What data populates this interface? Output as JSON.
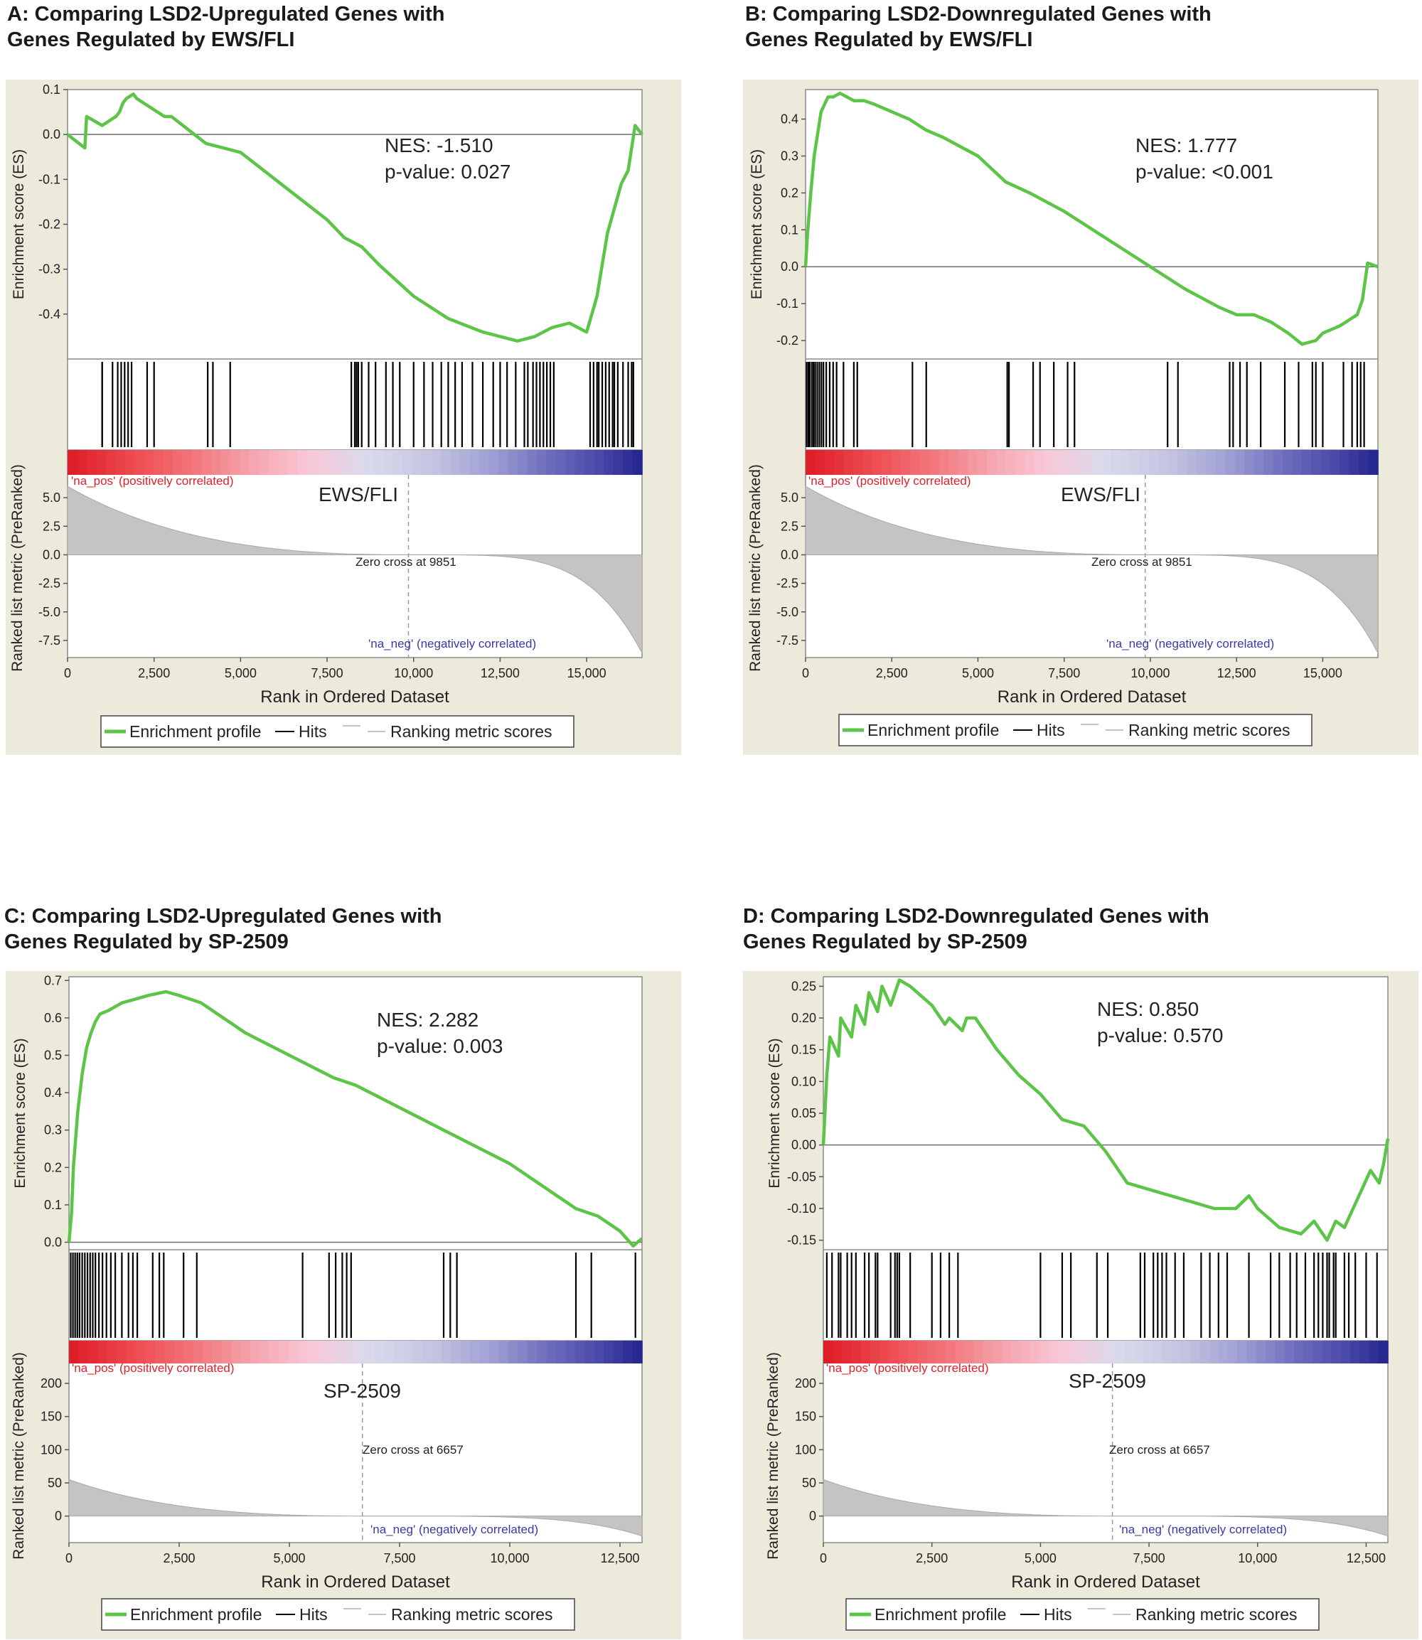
{
  "chart_data": [
    {
      "type": "line",
      "panel_title": "A: Comparing LSD2-Upregulated Genes with\nGenes Regulated by EWS/FLI",
      "nes_label": "NES: -1.510",
      "pvalue_label": "p-value: 0.027",
      "dataset_label": "EWS/FLI",
      "zero_cross_label": "Zero cross at 9851",
      "zero_cross": 9851,
      "pos_label": "'na_pos' (positively correlated)",
      "neg_label": "'na_neg' (negatively correlated)",
      "es_ylabel": "Enrichment score (ES)",
      "metric_ylabel": "Ranked list metric (PreRanked)",
      "xlabel": "Rank in Ordered Dataset",
      "xlim": [
        0,
        16600
      ],
      "x_ticks": [
        0,
        2500,
        5000,
        7500,
        10000,
        12500,
        15000
      ],
      "x_tick_labels": [
        "0",
        "2,500",
        "5,000",
        "7,500",
        "10,000",
        "12,500",
        "15,000"
      ],
      "es_ylim": [
        -0.5,
        0.1
      ],
      "es_ticks": [
        0.1,
        0.0,
        -0.1,
        -0.2,
        -0.3,
        -0.4
      ],
      "es_tick_labels": [
        "0.1",
        "0.0",
        "-0.1",
        "-0.2",
        "-0.3",
        "-0.4"
      ],
      "metric_ylim": [
        -9.0,
        7.0
      ],
      "metric_ticks": [
        5.0,
        2.5,
        0.0,
        -2.5,
        -5.0,
        -7.5
      ],
      "metric_tick_labels": [
        "5.0",
        "2.5",
        "0.0",
        "-2.5",
        "-5.0",
        "-7.5"
      ],
      "metric_max": 6.0,
      "metric_min": -8.6,
      "enrichment_profile": {
        "x": [
          0,
          500,
          550,
          1000,
          1400,
          1500,
          1600,
          1700,
          1900,
          2000,
          2800,
          3000,
          4000,
          4500,
          5000,
          6000,
          7500,
          8000,
          8500,
          9000,
          10000,
          11000,
          12000,
          13000,
          13500,
          14000,
          14500,
          15000,
          15300,
          15600,
          16000,
          16200,
          16400,
          16600
        ],
        "y": [
          0.0,
          -0.03,
          0.04,
          0.02,
          0.04,
          0.05,
          0.07,
          0.08,
          0.09,
          0.08,
          0.04,
          0.04,
          -0.02,
          -0.03,
          -0.04,
          -0.1,
          -0.19,
          -0.23,
          -0.25,
          -0.29,
          -0.36,
          -0.41,
          -0.44,
          -0.46,
          -0.45,
          -0.43,
          -0.42,
          -0.44,
          -0.36,
          -0.22,
          -0.11,
          -0.08,
          0.02,
          0.0
        ]
      },
      "hits": [
        1000,
        1000,
        1300,
        1450,
        1550,
        1650,
        1750,
        1850,
        2300,
        2500,
        4050,
        4200,
        4700,
        8200,
        8300,
        8350,
        8400,
        8500,
        8700,
        8900,
        9200,
        9400,
        9600,
        10000,
        10300,
        10550,
        10800,
        11000,
        11200,
        11400,
        11700,
        12000,
        12300,
        12500,
        12700,
        12950,
        13200,
        13300,
        13450,
        13550,
        13650,
        13750,
        13850,
        13950,
        14050,
        15100,
        15200,
        15300,
        15350,
        15450,
        15550,
        15650,
        15750,
        15800,
        15900,
        16050,
        16200,
        16300,
        16350
      ],
      "legend": [
        "Enrichment profile",
        "Hits",
        "Ranking metric scores"
      ]
    },
    {
      "type": "line",
      "panel_title": "B: Comparing LSD2-Downregulated Genes with\nGenes Regulated by EWS/FLI",
      "nes_label": "NES: 1.777",
      "pvalue_label": "p-value: <0.001",
      "dataset_label": "EWS/FLI",
      "zero_cross_label": "Zero cross at 9851",
      "zero_cross": 9851,
      "pos_label": "'na_pos' (positively correlated)",
      "neg_label": "'na_neg' (negatively correlated)",
      "es_ylabel": "Enrichment score (ES)",
      "metric_ylabel": "Ranked list metric (PreRanked)",
      "xlabel": "Rank in Ordered Dataset",
      "xlim": [
        0,
        16600
      ],
      "x_ticks": [
        0,
        2500,
        5000,
        7500,
        10000,
        12500,
        15000
      ],
      "x_tick_labels": [
        "0",
        "2,500",
        "5,000",
        "7,500",
        "10,000",
        "12,500",
        "15,000"
      ],
      "es_ylim": [
        -0.25,
        0.48
      ],
      "es_ticks": [
        0.4,
        0.3,
        0.2,
        0.1,
        0.0,
        -0.1,
        -0.2
      ],
      "es_tick_labels": [
        "0.4",
        "0.3",
        "0.2",
        "0.1",
        "0.0",
        "-0.1",
        "-0.2"
      ],
      "metric_ylim": [
        -9.0,
        7.0
      ],
      "metric_ticks": [
        5.0,
        2.5,
        0.0,
        -2.5,
        -5.0,
        -7.5
      ],
      "metric_tick_labels": [
        "5.0",
        "2.5",
        "0.0",
        "-2.5",
        "-5.0",
        "-7.5"
      ],
      "metric_max": 6.0,
      "metric_min": -8.6,
      "enrichment_profile": {
        "x": [
          0,
          50,
          150,
          250,
          350,
          450,
          550,
          650,
          800,
          1000,
          1200,
          1400,
          1700,
          2000,
          2500,
          3000,
          3500,
          4000,
          5000,
          5800,
          6500,
          7500,
          8500,
          9500,
          10000,
          11000,
          12000,
          12500,
          13000,
          13500,
          14000,
          14400,
          14800,
          15000,
          15500,
          16000,
          16150,
          16300,
          16600
        ],
        "y": [
          0.0,
          0.08,
          0.2,
          0.3,
          0.36,
          0.42,
          0.44,
          0.46,
          0.46,
          0.47,
          0.46,
          0.45,
          0.45,
          0.44,
          0.42,
          0.4,
          0.37,
          0.35,
          0.3,
          0.23,
          0.2,
          0.15,
          0.09,
          0.03,
          0.0,
          -0.06,
          -0.11,
          -0.13,
          -0.13,
          -0.15,
          -0.18,
          -0.21,
          -0.2,
          -0.18,
          -0.16,
          -0.13,
          -0.09,
          0.01,
          0.0
        ]
      },
      "hits": [
        30,
        80,
        120,
        180,
        230,
        280,
        340,
        400,
        460,
        520,
        600,
        700,
        800,
        900,
        1100,
        1400,
        1500,
        3100,
        3500,
        5850,
        5900,
        6600,
        6800,
        7200,
        7600,
        7800,
        10500,
        10800,
        12300,
        12400,
        12600,
        12800,
        13200,
        13900,
        14300,
        14700,
        14800,
        15000,
        15600,
        15850,
        16000,
        16100,
        16200
      ],
      "legend": [
        "Enrichment profile",
        "Hits",
        "Ranking metric scores"
      ]
    },
    {
      "type": "line",
      "panel_title": "C: Comparing LSD2-Upregulated Genes with\nGenes Regulated by SP-2509",
      "nes_label": "NES: 2.282",
      "pvalue_label": "p-value: 0.003",
      "dataset_label": "SP-2509",
      "zero_cross_label": "Zero cross at 6657",
      "zero_cross": 6657,
      "pos_label": "'na_pos' (positively correlated)",
      "neg_label": "'na_neg' (negatively correlated)",
      "es_ylabel": "Enrichment score (ES)",
      "metric_ylabel": "Ranked list metric (PreRanked)",
      "xlabel": "Rank in Ordered Dataset",
      "xlim": [
        0,
        13000
      ],
      "x_ticks": [
        0,
        2500,
        5000,
        7500,
        10000,
        12500
      ],
      "x_tick_labels": [
        "0",
        "2,500",
        "5,000",
        "7,500",
        "10,000",
        "12,500"
      ],
      "es_ylim": [
        -0.02,
        0.71
      ],
      "es_ticks": [
        0.7,
        0.6,
        0.5,
        0.4,
        0.3,
        0.2,
        0.1,
        0.0
      ],
      "es_tick_labels": [
        "0.7",
        "0.6",
        "0.5",
        "0.4",
        "0.3",
        "0.2",
        "0.1",
        "0.0"
      ],
      "metric_ylim": [
        -40,
        230
      ],
      "metric_ticks": [
        200,
        150,
        100,
        50,
        0
      ],
      "metric_tick_labels": [
        "200",
        "150",
        "100",
        "50",
        "0"
      ],
      "metric_max": 55,
      "metric_min": -30,
      "enrichment_profile": {
        "x": [
          0,
          60,
          100,
          200,
          300,
          400,
          500,
          600,
          700,
          900,
          1200,
          1500,
          1800,
          2200,
          2500,
          3000,
          3500,
          4000,
          4500,
          5000,
          5500,
          6000,
          6500,
          7000,
          7500,
          8000,
          8500,
          9000,
          9500,
          10000,
          10500,
          11000,
          11500,
          12000,
          12500,
          12800,
          13000
        ],
        "y": [
          0.0,
          0.08,
          0.2,
          0.35,
          0.45,
          0.52,
          0.56,
          0.59,
          0.61,
          0.62,
          0.64,
          0.65,
          0.66,
          0.67,
          0.66,
          0.64,
          0.6,
          0.56,
          0.53,
          0.5,
          0.47,
          0.44,
          0.42,
          0.39,
          0.36,
          0.33,
          0.3,
          0.27,
          0.24,
          0.21,
          0.17,
          0.13,
          0.09,
          0.07,
          0.03,
          -0.01,
          0.01
        ]
      },
      "hits": [
        40,
        90,
        140,
        190,
        240,
        300,
        360,
        420,
        480,
        540,
        600,
        680,
        760,
        850,
        950,
        1050,
        1200,
        1350,
        1450,
        1550,
        1900,
        2050,
        2150,
        2600,
        2900,
        5300,
        5900,
        6050,
        6200,
        6300,
        6400,
        8500,
        8650,
        8800,
        11500,
        11850,
        12850
      ],
      "legend": [
        "Enrichment profile",
        "Hits",
        "Ranking metric scores"
      ]
    },
    {
      "type": "line",
      "panel_title": "D: Comparing LSD2-Downregulated Genes with\nGenes Regulated by SP-2509",
      "nes_label": "NES: 0.850",
      "pvalue_label": "p-value: 0.570",
      "dataset_label": "SP-2509",
      "zero_cross_label": "Zero cross at 6657",
      "zero_cross": 6657,
      "pos_label": "'na_pos' (positively correlated)",
      "neg_label": "'na_neg' (negatively correlated)",
      "es_ylabel": "Enrichment score (ES)",
      "metric_ylabel": "Ranked list metric (PreRanked)",
      "xlabel": "Rank in Ordered Dataset",
      "xlim": [
        0,
        13000
      ],
      "x_ticks": [
        0,
        2500,
        5000,
        7500,
        10000,
        12500
      ],
      "x_tick_labels": [
        "0",
        "2,500",
        "5,000",
        "7,500",
        "10,000",
        "12,500"
      ],
      "es_ylim": [
        -0.165,
        0.265
      ],
      "es_ticks": [
        0.25,
        0.2,
        0.15,
        0.1,
        0.05,
        0.0,
        -0.05,
        -0.1,
        -0.15
      ],
      "es_tick_labels": [
        "0.25",
        "0.20",
        "0.15",
        "0.10",
        "0.05",
        "0.00",
        "-0.05",
        "-0.10",
        "-0.15"
      ],
      "metric_ylim": [
        -40,
        230
      ],
      "metric_ticks": [
        200,
        150,
        100,
        50,
        0
      ],
      "metric_tick_labels": [
        "200",
        "150",
        "100",
        "50",
        "0"
      ],
      "metric_max": 55,
      "metric_min": -30,
      "enrichment_profile": {
        "x": [
          0,
          80,
          150,
          350,
          400,
          650,
          750,
          950,
          1050,
          1250,
          1350,
          1550,
          1750,
          2000,
          2500,
          2800,
          2900,
          3200,
          3300,
          3500,
          4000,
          4500,
          5000,
          5500,
          6000,
          6500,
          7000,
          7500,
          8000,
          8500,
          9000,
          9500,
          9800,
          10000,
          10500,
          11000,
          11300,
          11600,
          11800,
          12000,
          12200,
          12400,
          12600,
          12800,
          12900,
          13000
        ],
        "y": [
          0.0,
          0.11,
          0.17,
          0.14,
          0.2,
          0.17,
          0.22,
          0.19,
          0.24,
          0.21,
          0.25,
          0.22,
          0.26,
          0.25,
          0.22,
          0.19,
          0.2,
          0.18,
          0.2,
          0.2,
          0.15,
          0.11,
          0.08,
          0.04,
          0.03,
          -0.01,
          -0.06,
          -0.07,
          -0.08,
          -0.09,
          -0.1,
          -0.1,
          -0.08,
          -0.1,
          -0.13,
          -0.14,
          -0.12,
          -0.15,
          -0.12,
          -0.13,
          -0.1,
          -0.07,
          -0.04,
          -0.06,
          -0.03,
          0.01
        ]
      },
      "hits": [
        80,
        200,
        350,
        400,
        550,
        650,
        750,
        950,
        1050,
        1200,
        1250,
        1550,
        1650,
        1700,
        1750,
        2000,
        2500,
        2700,
        2900,
        3100,
        5000,
        5500,
        5700,
        6300,
        6550,
        7300,
        7400,
        7600,
        7700,
        7800,
        7900,
        8100,
        8300,
        8700,
        8900,
        9100,
        9300,
        9800,
        10300,
        10500,
        10750,
        10900,
        11100,
        11300,
        11400,
        11500,
        11600,
        11650,
        11750,
        11800,
        12000,
        12100,
        12250,
        12500,
        12750
      ],
      "legend": [
        "Enrichment profile",
        "Hits",
        "Ranking metric scores"
      ]
    }
  ]
}
